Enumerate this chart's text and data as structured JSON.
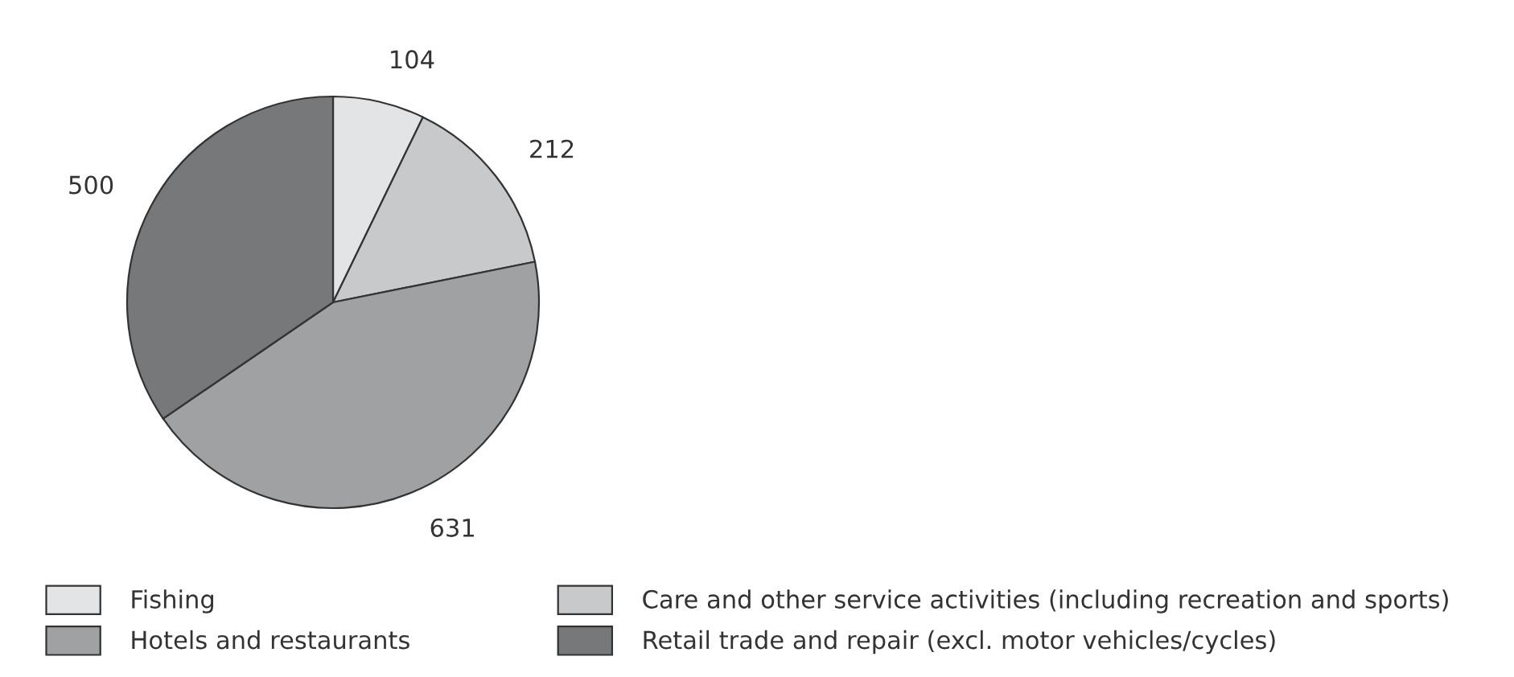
{
  "chart_data": {
    "type": "pie",
    "categories": [
      "Fishing",
      "Care and other service activities (including recreation and sports)",
      "Hotels and restaurants",
      "Retail trade and repair (excl. motor vehicles/cycles)"
    ],
    "values": [
      104,
      212,
      631,
      500
    ],
    "colors": [
      "#e3e4e6",
      "#c8c9cb",
      "#a0a1a3",
      "#77787a"
    ],
    "data_labels": true,
    "legend": "bottom"
  }
}
